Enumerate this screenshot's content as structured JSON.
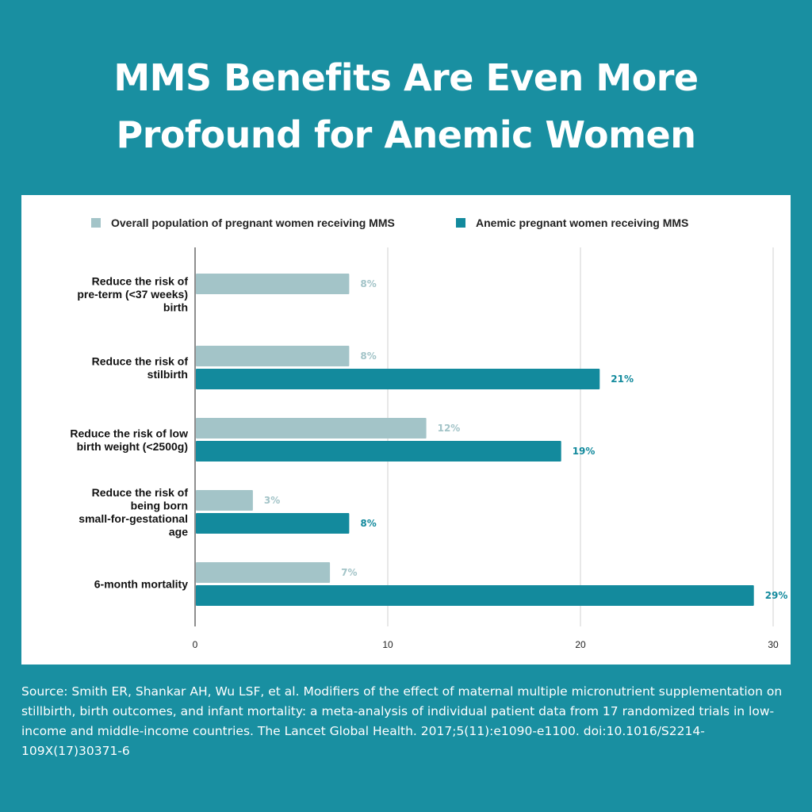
{
  "title_line1": "MMS Benefits Are Even More",
  "title_line2": "Profound for Anemic Women",
  "source": "Source: Smith ER, Shankar AH, Wu LSF, et al. Modifiers of the effect of maternal multiple micronutrient supplementation on stillbirth, birth outcomes, and infant mortality: a meta-analysis of individual patient data from 17 randomized trials in low-income and middle-income countries. The Lancet Global Health. 2017;5(11):e1090-e1100. doi:10.1016/S2214-109X(17)30371-6",
  "chart_data": {
    "type": "bar",
    "orientation": "horizontal",
    "categories": [
      [
        "Reduce the risk of",
        "pre-term (<37 weeks)",
        "birth"
      ],
      [
        "Reduce the risk of",
        "stilbirth"
      ],
      [
        "Reduce the risk of low",
        "birth weight (<2500g)"
      ],
      [
        "Reduce the risk of",
        "being born",
        "small-for-gestational",
        "age"
      ],
      [
        "6-month mortality"
      ]
    ],
    "series": [
      {
        "name": "Overall population of pregnant women receiving MMS",
        "color": "#a3c4c8",
        "values": [
          8,
          8,
          12,
          3,
          7
        ],
        "labels": [
          "8%",
          "8%",
          "12%",
          "3%",
          "7%"
        ]
      },
      {
        "name": "Anemic pregnant women receiving MMS",
        "color": "#138a9d",
        "values": [
          null,
          21,
          19,
          8,
          29
        ],
        "labels": [
          null,
          "21%",
          "19%",
          "8%",
          "29%"
        ]
      }
    ],
    "xlim": [
      0,
      30
    ],
    "xticks": [
      "0",
      "10",
      "20",
      "30"
    ],
    "grid": true,
    "legend": "top"
  }
}
